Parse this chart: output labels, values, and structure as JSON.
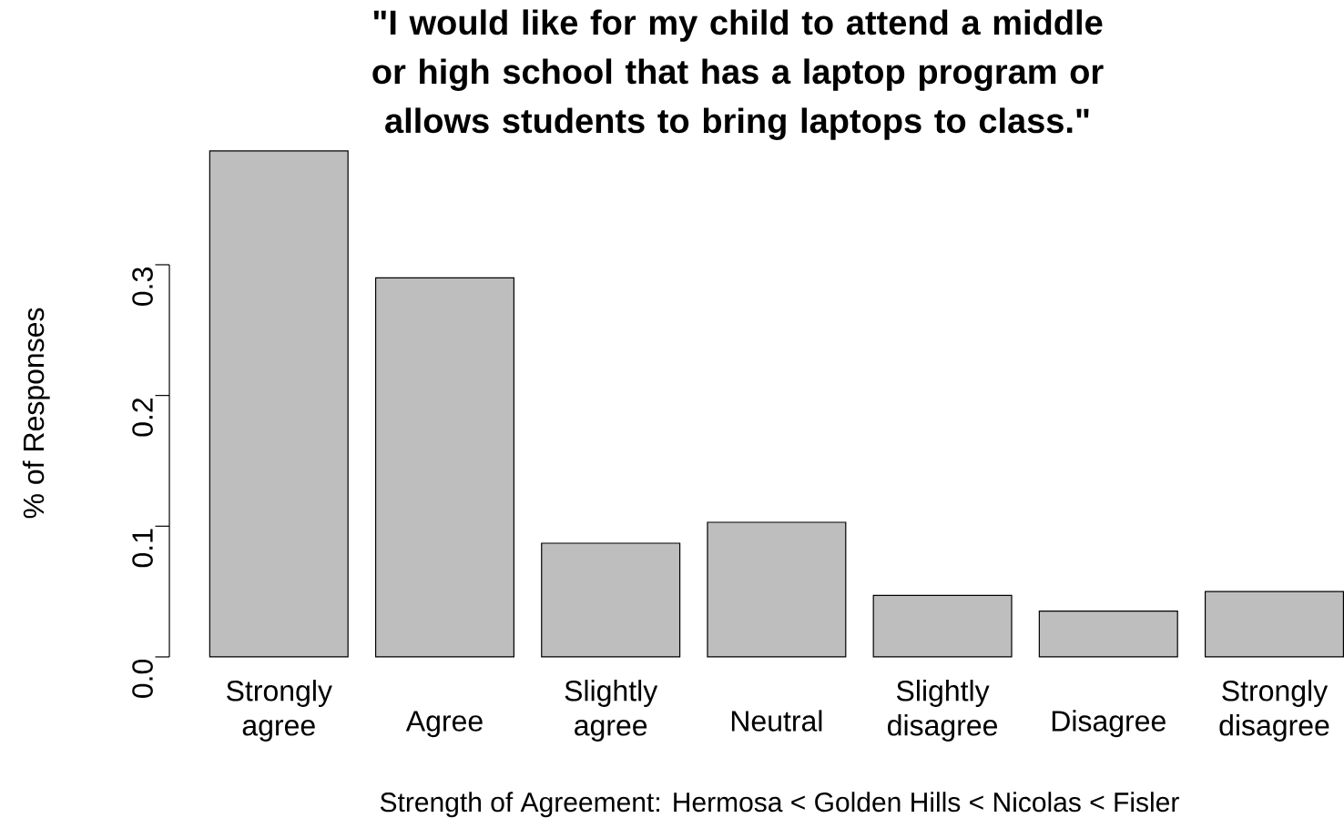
{
  "chart_data": {
    "type": "bar",
    "title": "\"I would like for my child to attend a middle or high school that has a laptop program or allows students to bring laptops to class.\"",
    "xlabel": "Strength of Agreement: Hermosa  < Golden Hills < Nicolas < Fisler",
    "ylabel": "% of Responses",
    "categories": [
      "Strongly agree",
      "Agree",
      "Slightly agree",
      "Neutral",
      "Slightly disagree",
      "Disagree",
      "Strongly disagree"
    ],
    "values": [
      0.387,
      0.29,
      0.087,
      0.103,
      0.047,
      0.035,
      0.05
    ],
    "color": "#bebebe",
    "ylim": [
      0,
      0.387
    ],
    "yticks": [
      {
        "value": 0,
        "label": "0.0"
      },
      {
        "value": 0.1,
        "label": "0.1"
      },
      {
        "value": 0.2,
        "label": "0.2"
      },
      {
        "value": 0.3,
        "label": "0.3"
      }
    ]
  }
}
